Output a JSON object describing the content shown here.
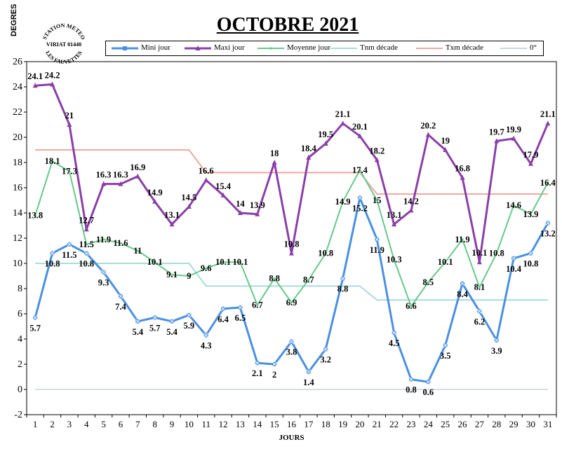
{
  "title": "OCTOBRE 2021",
  "y_unit": "DEGRES",
  "stamp": {
    "line1": "STATION METEO",
    "line2": "VIRIAT 01440",
    "line3": "LES FAUVETTES"
  },
  "colors": {
    "mini": "#4a90e2",
    "maxi": "#8a3fa8",
    "moyenne": "#66c98a",
    "tnm": "#a9dcd9",
    "txm": "#f0a8a0",
    "zero": "#c8d4dc"
  },
  "legend": [
    {
      "key": "mini",
      "label": "Mini jour"
    },
    {
      "key": "maxi",
      "label": "Maxi jour"
    },
    {
      "key": "moyenne",
      "label": "Moyenne jour"
    },
    {
      "key": "tnm",
      "label": "Tnm  décade"
    },
    {
      "key": "txm",
      "label": "Txm  décade"
    },
    {
      "key": "zero",
      "label": "0°"
    }
  ],
  "chart_data": {
    "type": "line",
    "title": "OCTOBRE 2021",
    "xlabel": "JOURS",
    "ylabel": "DEGRES",
    "x": [
      1,
      2,
      3,
      4,
      5,
      6,
      7,
      8,
      9,
      10,
      11,
      12,
      13,
      14,
      15,
      16,
      17,
      18,
      19,
      20,
      21,
      22,
      23,
      24,
      25,
      26,
      27,
      28,
      29,
      30,
      31
    ],
    "ylim": [
      -2,
      26
    ],
    "yticks": [
      -2,
      0,
      2,
      4,
      6,
      8,
      10,
      12,
      14,
      16,
      18,
      20,
      22,
      24,
      26
    ],
    "legend_position": "top",
    "series": [
      {
        "name": "Mini jour",
        "key": "mini",
        "values": [
          5.7,
          10.8,
          11.5,
          10.8,
          9.3,
          7.4,
          5.4,
          5.7,
          5.4,
          5.9,
          4.3,
          6.4,
          6.5,
          2.1,
          2,
          3.8,
          1.4,
          3.2,
          8.8,
          15.2,
          11.9,
          4.5,
          0.8,
          0.6,
          3.5,
          8.4,
          6.2,
          3.9,
          10.4,
          10.8,
          13.2
        ],
        "labels": [
          "5.7",
          "10.8",
          "11.5",
          "10.8",
          "9.3",
          "7.4",
          "5.4",
          "5.7",
          "5.4",
          "5.9",
          "4.3",
          "6.4",
          "6.5",
          "2.1",
          "2",
          "3.8",
          "1.4",
          "3.2",
          "8.8",
          "15.2",
          "11.9",
          "4.5",
          "0.8",
          "0.6",
          "3.5",
          "8.4",
          "6.2",
          "3.9",
          "10.4",
          "10.8",
          "13.2"
        ]
      },
      {
        "name": "Maxi jour",
        "key": "maxi",
        "values": [
          24.1,
          24.2,
          21,
          12.7,
          16.3,
          16.3,
          16.9,
          14.9,
          13.1,
          14.5,
          16.6,
          15.4,
          14,
          13.9,
          18,
          10.8,
          18.4,
          19.5,
          21.1,
          20.1,
          18.2,
          13.1,
          14.2,
          20.2,
          19,
          16.8,
          10.1,
          19.7,
          19.9,
          17.9,
          21.1
        ],
        "labels": [
          "24.1",
          "24.2",
          "21",
          "12.7",
          "16.3",
          "16.3",
          "16.9",
          "14.9",
          "13.1",
          "14.5",
          "16.6",
          "15.4",
          "14",
          "13.9",
          "18",
          "10.8",
          "18.4",
          "19.5",
          "21.1",
          "20.1",
          "18.2",
          "13.1",
          "14.2",
          "20.2",
          "19",
          "16.8",
          "10.1",
          "19.7",
          "19.9",
          "17.9",
          "21.1"
        ]
      },
      {
        "name": "Moyenne jour",
        "key": "moyenne",
        "values": [
          13.8,
          18.1,
          17.3,
          11.5,
          11.9,
          11.6,
          11,
          10.1,
          9.1,
          9,
          9.6,
          10.1,
          10.1,
          6.7,
          8.8,
          6.9,
          8.7,
          10.8,
          14.9,
          17.4,
          15,
          10.3,
          6.6,
          8.5,
          10.1,
          11.9,
          8.1,
          10.8,
          14.6,
          13.9,
          16.4
        ],
        "labels": [
          "13.8",
          "18.1",
          "17.3",
          "11.5",
          "11.9",
          "11.6",
          "11",
          "10.1",
          "9.1",
          "9",
          "9.6",
          "10.1",
          "10.1",
          "6.7",
          "8.8",
          "6.9",
          "8.7",
          "10.8",
          "14.9",
          "17.4",
          "15",
          "10.3",
          "6.6",
          "8.5",
          "10.1",
          "11.9",
          "8.1",
          "10.8",
          "14.6",
          "13.9",
          "16.4"
        ]
      },
      {
        "name": "Tnm  décade",
        "key": "tnm",
        "values": [
          10,
          10,
          10,
          10,
          10,
          10,
          10,
          10,
          10,
          10,
          8.2,
          8.2,
          8.2,
          8.2,
          8.2,
          8.2,
          8.2,
          8.2,
          8.2,
          8.2,
          7.1,
          7.1,
          7.1,
          7.1,
          7.1,
          7.1,
          7.1,
          7.1,
          7.1,
          7.1,
          7.1
        ]
      },
      {
        "name": "Txm  décade",
        "key": "txm",
        "values": [
          19,
          19,
          19,
          19,
          19,
          19,
          19,
          19,
          19,
          19,
          17.2,
          17.2,
          17.2,
          17.2,
          17.2,
          17.2,
          17.2,
          17.2,
          17.2,
          17.2,
          15.5,
          15.5,
          15.5,
          15.5,
          15.5,
          15.5,
          15.5,
          15.5,
          15.5,
          15.5,
          15.5
        ]
      },
      {
        "name": "0°",
        "key": "zero",
        "values": [
          0,
          0,
          0,
          0,
          0,
          0,
          0,
          0,
          0,
          0,
          0,
          0,
          0,
          0,
          0,
          0,
          0,
          0,
          0,
          0,
          0,
          0,
          0,
          0,
          0,
          0,
          0,
          0,
          0,
          0,
          0
        ]
      }
    ]
  }
}
